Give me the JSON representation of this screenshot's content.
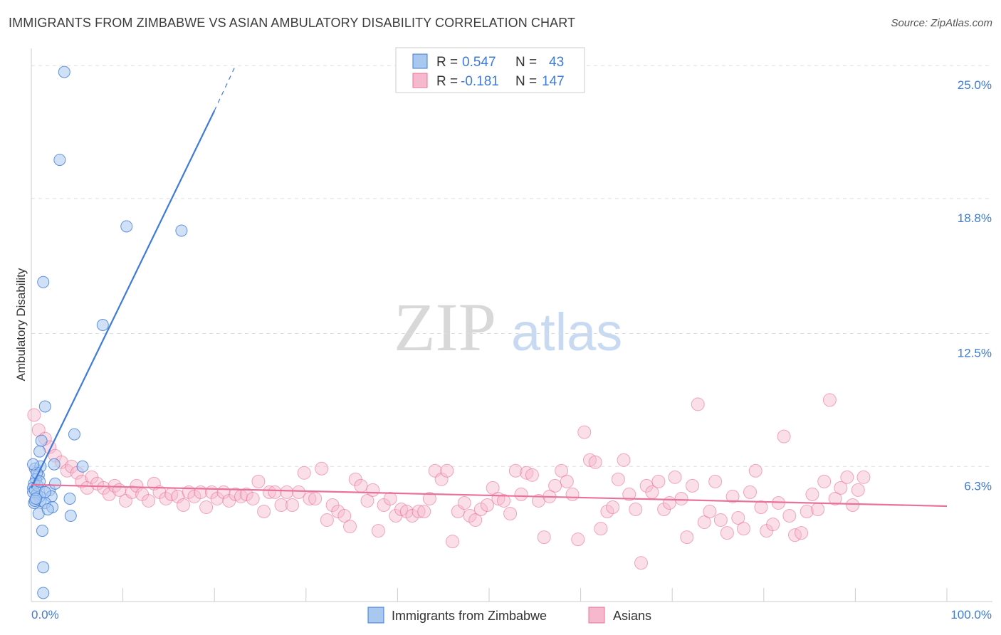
{
  "header": {
    "title": "IMMIGRANTS FROM ZIMBABWE VS ASIAN AMBULATORY DISABILITY CORRELATION CHART",
    "source": "Source: ZipAtlas.com"
  },
  "watermark": {
    "zip": "ZIP",
    "atlas": "atlas"
  },
  "colors": {
    "blue": "#3d7bd6",
    "blue_fill": "#a9c8f0",
    "pink": "#e8729a",
    "pink_fill": "#f6b8cc",
    "grid": "#dddddd"
  },
  "legend_box": {
    "rows": [
      {
        "r_label": "R =",
        "r_value": "0.547",
        "n_label": "N =",
        "n_value": "43"
      },
      {
        "r_label": "R =",
        "r_value": "-0.181",
        "n_label": "N =",
        "n_value": "147"
      }
    ]
  },
  "bottom_legend": {
    "items": [
      {
        "label": "Immigrants from Zimbabwe"
      },
      {
        "label": "Asians"
      }
    ]
  },
  "chart_data": {
    "type": "scatter",
    "title": "IMMIGRANTS FROM ZIMBABWE VS ASIAN AMBULATORY DISABILITY CORRELATION CHART",
    "xlabel": "",
    "ylabel": "Ambulatory Disability",
    "xlim": [
      0,
      100
    ],
    "ylim": [
      0,
      25.8
    ],
    "x_tick_labels": [
      "0.0%",
      "100.0%"
    ],
    "y_ticks": [
      6.3,
      12.5,
      18.8,
      25.0
    ],
    "y_tick_labels": [
      "6.3%",
      "12.5%",
      "18.8%",
      "25.0%"
    ],
    "grid": "horizontal dashed",
    "legend_placement": "top-center",
    "series": [
      {
        "name": "Immigrants from Zimbabwe",
        "color": "#3d7bd6",
        "r": 0.547,
        "n": 43,
        "trend": {
          "x": [
            0,
            20
          ],
          "y": [
            5.3,
            22.9
          ],
          "dashed_extension_to": [
            22.3,
            25.0
          ]
        },
        "points": [
          [
            3.6,
            24.7
          ],
          [
            3.1,
            20.6
          ],
          [
            10.4,
            17.5
          ],
          [
            16.4,
            17.3
          ],
          [
            1.3,
            14.9
          ],
          [
            7.8,
            12.9
          ],
          [
            1.5,
            9.1
          ],
          [
            4.7,
            7.8
          ],
          [
            1.1,
            7.5
          ],
          [
            0.9,
            7.0
          ],
          [
            5.6,
            6.3
          ],
          [
            0.4,
            6.2
          ],
          [
            0.8,
            5.9
          ],
          [
            0.5,
            5.7
          ],
          [
            0.3,
            5.5
          ],
          [
            0.2,
            5.3
          ],
          [
            0.2,
            5.1
          ],
          [
            0.6,
            5.0
          ],
          [
            2.0,
            5.2
          ],
          [
            2.2,
            4.9
          ],
          [
            1.0,
            4.7
          ],
          [
            0.9,
            4.9
          ],
          [
            1.5,
            4.6
          ],
          [
            0.3,
            4.6
          ],
          [
            2.3,
            4.4
          ],
          [
            0.8,
            4.1
          ],
          [
            4.3,
            4.0
          ],
          [
            4.2,
            4.8
          ],
          [
            1.0,
            6.3
          ],
          [
            0.6,
            6.0
          ],
          [
            0.4,
            4.7
          ],
          [
            1.2,
            3.3
          ],
          [
            1.3,
            1.6
          ],
          [
            1.3,
            0.4
          ],
          [
            2.6,
            5.5
          ],
          [
            1.8,
            4.3
          ],
          [
            0.7,
            5.4
          ],
          [
            0.2,
            6.4
          ],
          [
            0.4,
            5.2
          ],
          [
            0.5,
            4.8
          ],
          [
            1.5,
            5.1
          ],
          [
            0.9,
            5.6
          ],
          [
            2.5,
            6.4
          ]
        ]
      },
      {
        "name": "Asians",
        "color": "#e8729a",
        "r": -0.181,
        "n": 147,
        "trend": {
          "x": [
            0,
            100
          ],
          "y": [
            5.45,
            4.45
          ]
        },
        "points": [
          [
            0.3,
            8.7
          ],
          [
            0.8,
            8.0
          ],
          [
            1.5,
            7.6
          ],
          [
            2.0,
            7.2
          ],
          [
            2.6,
            6.8
          ],
          [
            3.3,
            6.5
          ],
          [
            3.9,
            6.1
          ],
          [
            4.4,
            6.3
          ],
          [
            5.0,
            6.0
          ],
          [
            5.5,
            5.6
          ],
          [
            6.1,
            5.3
          ],
          [
            6.6,
            5.8
          ],
          [
            7.2,
            5.5
          ],
          [
            7.9,
            5.3
          ],
          [
            8.5,
            5.0
          ],
          [
            9.1,
            5.4
          ],
          [
            9.6,
            5.2
          ],
          [
            10.3,
            4.7
          ],
          [
            11.0,
            5.1
          ],
          [
            11.5,
            5.4
          ],
          [
            12.1,
            5.0
          ],
          [
            12.8,
            4.7
          ],
          [
            13.4,
            5.5
          ],
          [
            14.0,
            5.1
          ],
          [
            14.7,
            4.8
          ],
          [
            15.3,
            5.0
          ],
          [
            16.0,
            4.9
          ],
          [
            16.6,
            4.5
          ],
          [
            17.2,
            5.1
          ],
          [
            17.8,
            4.9
          ],
          [
            18.5,
            5.1
          ],
          [
            19.1,
            4.4
          ],
          [
            19.7,
            5.1
          ],
          [
            20.3,
            4.8
          ],
          [
            21.0,
            5.1
          ],
          [
            21.6,
            4.7
          ],
          [
            22.3,
            5.0
          ],
          [
            22.9,
            4.9
          ],
          [
            23.5,
            5.0
          ],
          [
            24.2,
            4.8
          ],
          [
            24.8,
            5.6
          ],
          [
            25.4,
            4.2
          ],
          [
            26.0,
            5.1
          ],
          [
            26.6,
            5.1
          ],
          [
            27.3,
            4.5
          ],
          [
            27.9,
            5.1
          ],
          [
            28.5,
            4.5
          ],
          [
            29.2,
            5.1
          ],
          [
            29.8,
            6.0
          ],
          [
            30.4,
            4.8
          ],
          [
            31.0,
            4.8
          ],
          [
            31.7,
            6.2
          ],
          [
            32.3,
            3.8
          ],
          [
            32.9,
            4.5
          ],
          [
            33.5,
            4.2
          ],
          [
            34.2,
            4.0
          ],
          [
            34.8,
            3.5
          ],
          [
            35.4,
            5.7
          ],
          [
            36.0,
            5.4
          ],
          [
            36.7,
            4.7
          ],
          [
            37.3,
            5.2
          ],
          [
            37.9,
            3.3
          ],
          [
            38.5,
            4.5
          ],
          [
            39.2,
            4.8
          ],
          [
            39.8,
            4.0
          ],
          [
            40.4,
            4.3
          ],
          [
            41.0,
            4.2
          ],
          [
            41.6,
            4.0
          ],
          [
            42.3,
            4.2
          ],
          [
            42.9,
            4.2
          ],
          [
            43.5,
            4.8
          ],
          [
            44.1,
            6.1
          ],
          [
            44.8,
            5.7
          ],
          [
            45.4,
            6.1
          ],
          [
            46.0,
            2.8
          ],
          [
            46.6,
            4.2
          ],
          [
            47.3,
            4.6
          ],
          [
            47.9,
            4.0
          ],
          [
            48.5,
            3.8
          ],
          [
            49.1,
            4.3
          ],
          [
            49.8,
            4.5
          ],
          [
            50.4,
            5.3
          ],
          [
            51.0,
            4.8
          ],
          [
            51.6,
            4.7
          ],
          [
            52.3,
            4.1
          ],
          [
            52.9,
            6.1
          ],
          [
            53.5,
            5.0
          ],
          [
            54.1,
            6.0
          ],
          [
            54.7,
            5.9
          ],
          [
            55.4,
            4.7
          ],
          [
            56.0,
            3.0
          ],
          [
            56.6,
            4.9
          ],
          [
            57.2,
            5.4
          ],
          [
            57.9,
            6.1
          ],
          [
            58.5,
            5.6
          ],
          [
            59.1,
            5.0
          ],
          [
            59.7,
            2.9
          ],
          [
            60.4,
            7.9
          ],
          [
            61.0,
            6.6
          ],
          [
            61.6,
            6.5
          ],
          [
            62.2,
            3.4
          ],
          [
            62.9,
            4.2
          ],
          [
            63.5,
            4.4
          ],
          [
            64.1,
            5.7
          ],
          [
            64.7,
            6.6
          ],
          [
            65.3,
            5.0
          ],
          [
            66.0,
            4.3
          ],
          [
            66.6,
            1.8
          ],
          [
            67.2,
            5.4
          ],
          [
            67.8,
            5.1
          ],
          [
            68.5,
            5.6
          ],
          [
            69.1,
            4.3
          ],
          [
            69.7,
            4.6
          ],
          [
            70.3,
            5.8
          ],
          [
            71.0,
            4.8
          ],
          [
            71.6,
            3.0
          ],
          [
            72.2,
            5.4
          ],
          [
            72.8,
            9.2
          ],
          [
            73.5,
            3.7
          ],
          [
            74.1,
            4.2
          ],
          [
            74.7,
            5.6
          ],
          [
            75.3,
            3.8
          ],
          [
            76.0,
            3.2
          ],
          [
            76.6,
            4.9
          ],
          [
            77.2,
            3.9
          ],
          [
            77.8,
            3.4
          ],
          [
            78.5,
            5.1
          ],
          [
            79.1,
            6.1
          ],
          [
            79.7,
            4.4
          ],
          [
            80.3,
            3.3
          ],
          [
            81.0,
            3.6
          ],
          [
            81.6,
            4.6
          ],
          [
            82.2,
            7.7
          ],
          [
            82.8,
            4.0
          ],
          [
            83.4,
            3.1
          ],
          [
            84.1,
            3.2
          ],
          [
            84.7,
            4.2
          ],
          [
            85.3,
            5.0
          ],
          [
            85.9,
            4.3
          ],
          [
            86.6,
            5.6
          ],
          [
            87.2,
            9.4
          ],
          [
            87.8,
            4.8
          ],
          [
            88.4,
            5.3
          ],
          [
            89.1,
            5.8
          ],
          [
            89.7,
            4.5
          ],
          [
            90.3,
            5.2
          ],
          [
            90.9,
            5.8
          ]
        ]
      }
    ]
  }
}
